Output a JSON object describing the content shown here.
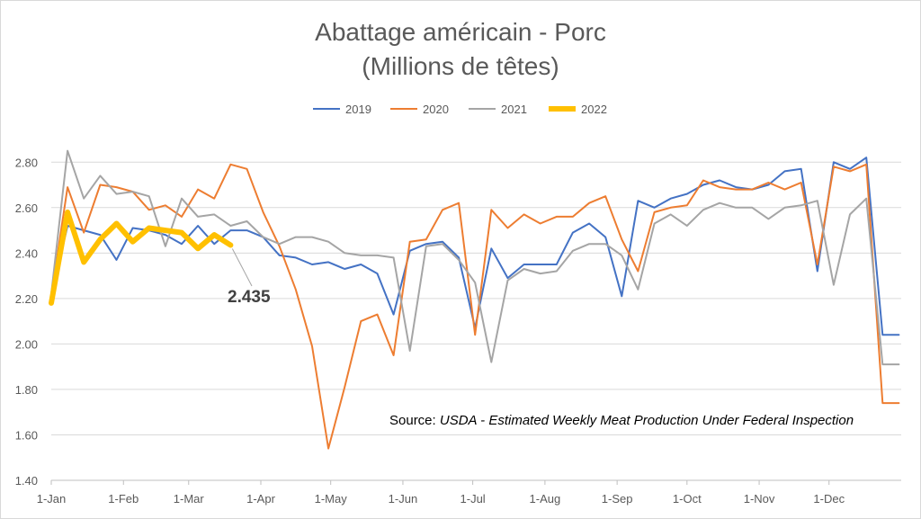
{
  "chart_data": {
    "type": "line",
    "title": "Abattage américain - Porc",
    "subtitle": "(Millions de têtes)",
    "ylim": [
      1.4,
      2.9
    ],
    "yticks": [
      "1.40",
      "1.60",
      "1.80",
      "2.00",
      "2.20",
      "2.40",
      "2.60",
      "2.80"
    ],
    "ytick_values": [
      1.4,
      1.6,
      1.8,
      2.0,
      2.2,
      2.4,
      2.6,
      2.8
    ],
    "xlim": [
      0,
      365
    ],
    "xticks": [
      "1-Jan",
      "1-Feb",
      "1-Mar",
      "1-Apr",
      "1-May",
      "1-Jun",
      "1-Jul",
      "1-Aug",
      "1-Sep",
      "1-Oct",
      "1-Nov",
      "1-Dec"
    ],
    "xtick_days": [
      0,
      31,
      59,
      90,
      120,
      151,
      181,
      212,
      243,
      273,
      304,
      334
    ],
    "grid": true,
    "legend_position": "top-center",
    "annotation": "2.435",
    "source_label": "Source: ",
    "source_text": "USDA - Estimated Weekly Meat Production Under Federal Inspection",
    "series": [
      {
        "name": "2019",
        "color": "#4472C4",
        "width": 2,
        "x": [
          0,
          7,
          14,
          21,
          28,
          35,
          42,
          49,
          56,
          63,
          70,
          77,
          84,
          91,
          98,
          105,
          112,
          119,
          126,
          133,
          140,
          147,
          154,
          161,
          168,
          175,
          182,
          189,
          196,
          203,
          210,
          217,
          224,
          231,
          238,
          245,
          252,
          259,
          266,
          273,
          280,
          287,
          294,
          301,
          308,
          315,
          322,
          329,
          336,
          343,
          350,
          357,
          364
        ],
        "values": [
          2.21,
          2.52,
          2.5,
          2.48,
          2.37,
          2.51,
          2.5,
          2.48,
          2.44,
          2.52,
          2.44,
          2.5,
          2.5,
          2.47,
          2.39,
          2.38,
          2.35,
          2.36,
          2.33,
          2.35,
          2.31,
          2.13,
          2.41,
          2.44,
          2.45,
          2.38,
          2.07,
          2.42,
          2.29,
          2.35,
          2.35,
          2.35,
          2.49,
          2.53,
          2.47,
          2.21,
          2.63,
          2.6,
          2.64,
          2.66,
          2.7,
          2.72,
          2.69,
          2.68,
          2.7,
          2.76,
          2.77,
          2.32,
          2.8,
          2.77,
          2.82,
          2.04,
          2.04
        ]
      },
      {
        "name": "2020",
        "color": "#ED7D31",
        "width": 2,
        "x": [
          0,
          7,
          14,
          21,
          28,
          35,
          42,
          49,
          56,
          63,
          70,
          77,
          84,
          91,
          98,
          105,
          112,
          119,
          126,
          133,
          140,
          147,
          154,
          161,
          168,
          175,
          182,
          189,
          196,
          203,
          210,
          217,
          224,
          231,
          238,
          245,
          252,
          259,
          266,
          273,
          280,
          287,
          294,
          301,
          308,
          315,
          322,
          329,
          336,
          343,
          350,
          357,
          364
        ],
        "values": [
          2.21,
          2.69,
          2.49,
          2.7,
          2.69,
          2.67,
          2.59,
          2.61,
          2.56,
          2.68,
          2.64,
          2.79,
          2.77,
          2.58,
          2.43,
          2.24,
          1.99,
          1.54,
          1.81,
          2.1,
          2.13,
          1.95,
          2.45,
          2.46,
          2.59,
          2.62,
          2.04,
          2.59,
          2.51,
          2.57,
          2.53,
          2.56,
          2.56,
          2.62,
          2.65,
          2.46,
          2.32,
          2.58,
          2.6,
          2.61,
          2.72,
          2.69,
          2.68,
          2.68,
          2.71,
          2.68,
          2.71,
          2.35,
          2.78,
          2.76,
          2.79,
          1.74,
          1.74
        ]
      },
      {
        "name": "2021",
        "color": "#A5A5A5",
        "width": 2,
        "x": [
          0,
          7,
          14,
          21,
          28,
          35,
          42,
          49,
          56,
          63,
          70,
          77,
          84,
          91,
          98,
          105,
          112,
          119,
          126,
          133,
          140,
          147,
          154,
          161,
          168,
          175,
          182,
          189,
          196,
          203,
          210,
          217,
          224,
          231,
          238,
          245,
          252,
          259,
          266,
          273,
          280,
          287,
          294,
          301,
          308,
          315,
          322,
          329,
          336,
          343,
          350,
          357,
          364
        ],
        "values": [
          2.22,
          2.85,
          2.64,
          2.74,
          2.66,
          2.67,
          2.65,
          2.43,
          2.64,
          2.56,
          2.57,
          2.52,
          2.54,
          2.47,
          2.44,
          2.47,
          2.47,
          2.45,
          2.4,
          2.39,
          2.39,
          2.38,
          1.97,
          2.43,
          2.44,
          2.37,
          2.27,
          1.92,
          2.28,
          2.33,
          2.31,
          2.32,
          2.41,
          2.44,
          2.44,
          2.39,
          2.24,
          2.53,
          2.57,
          2.52,
          2.59,
          2.62,
          2.6,
          2.6,
          2.55,
          2.6,
          2.61,
          2.63,
          2.26,
          2.57,
          2.64,
          1.91,
          1.91
        ]
      },
      {
        "name": "2022",
        "color": "#FFC000",
        "width": 6,
        "x": [
          0,
          7,
          14,
          21,
          28,
          35,
          42,
          49,
          56,
          63,
          70,
          77
        ],
        "values": [
          2.18,
          2.58,
          2.36,
          2.46,
          2.53,
          2.45,
          2.51,
          2.5,
          2.49,
          2.42,
          2.48,
          2.435
        ]
      }
    ]
  }
}
